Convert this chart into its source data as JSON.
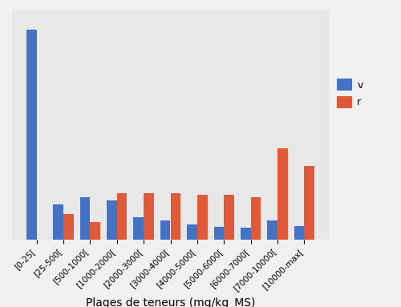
{
  "categories": [
    "[0-25[",
    "[25-500[",
    "[500-1000[",
    "[1000-2000[",
    "[2000-3000[",
    "[3000-4000[",
    "[4000-5000[",
    "[5000-6000[",
    "[6000-7000[",
    "[7000-10000[",
    "[10000-max["
  ],
  "values_blue": [
    310,
    52,
    62,
    58,
    33,
    28,
    22,
    19,
    17,
    28,
    20
  ],
  "values_red": [
    0,
    38,
    26,
    68,
    68,
    68,
    66,
    66,
    63,
    135,
    108
  ],
  "color_blue": "#4472c4",
  "color_red": "#e05a3a",
  "xlabel": "Plages de teneurs (mg/kg_MS)",
  "xlabel_fontsize": 10,
  "legend_labels": [
    "v",
    "r"
  ],
  "plot_bg_color": "#e8e8e8",
  "fig_bg_color": "#f0f0f0",
  "ylim": [
    0,
    340
  ],
  "bar_width": 0.38,
  "figsize": [
    5.0,
    3.83
  ],
  "dpi": 100,
  "grid_color": "#ffffff",
  "grid_linewidth": 1.2
}
